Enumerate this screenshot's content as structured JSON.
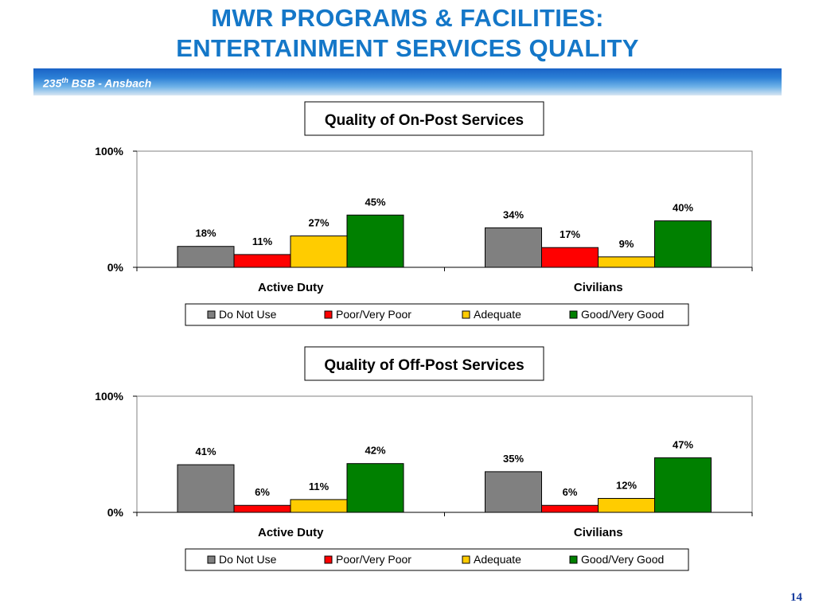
{
  "slide": {
    "title_line1": "MWR PROGRAMS & FACILITIES:",
    "title_line2": "ENTERTAINMENT SERVICES QUALITY",
    "banner_number": "235",
    "banner_suffix": "th",
    "banner_rest": " BSB - Ansbach",
    "page_number": "14"
  },
  "chart_data": [
    {
      "type": "bar",
      "title": "Quality of On-Post Services",
      "categories": [
        "Active Duty",
        "Civilians"
      ],
      "series": [
        {
          "name": "Do Not Use",
          "color": "#808080",
          "values": [
            18,
            34
          ]
        },
        {
          "name": "Poor/Very Poor",
          "color": "#ff0000",
          "values": [
            11,
            17
          ]
        },
        {
          "name": "Adequate",
          "color": "#ffcc00",
          "values": [
            27,
            9
          ]
        },
        {
          "name": "Good/Very Good",
          "color": "#008000",
          "values": [
            45,
            40
          ]
        }
      ],
      "ylim": [
        0,
        100
      ],
      "yticks": [
        "0%",
        "100%"
      ],
      "value_suffix": "%",
      "legend_position": "bottom",
      "grid": false
    },
    {
      "type": "bar",
      "title": "Quality of Off-Post Services",
      "categories": [
        "Active Duty",
        "Civilians"
      ],
      "series": [
        {
          "name": "Do Not Use",
          "color": "#808080",
          "values": [
            41,
            35
          ]
        },
        {
          "name": "Poor/Very Poor",
          "color": "#ff0000",
          "values": [
            6,
            6
          ]
        },
        {
          "name": "Adequate",
          "color": "#ffcc00",
          "values": [
            11,
            12
          ]
        },
        {
          "name": "Good/Very Good",
          "color": "#008000",
          "values": [
            42,
            47
          ]
        }
      ],
      "ylim": [
        0,
        100
      ],
      "yticks": [
        "0%",
        "100%"
      ],
      "value_suffix": "%",
      "legend_position": "bottom",
      "grid": false
    }
  ]
}
